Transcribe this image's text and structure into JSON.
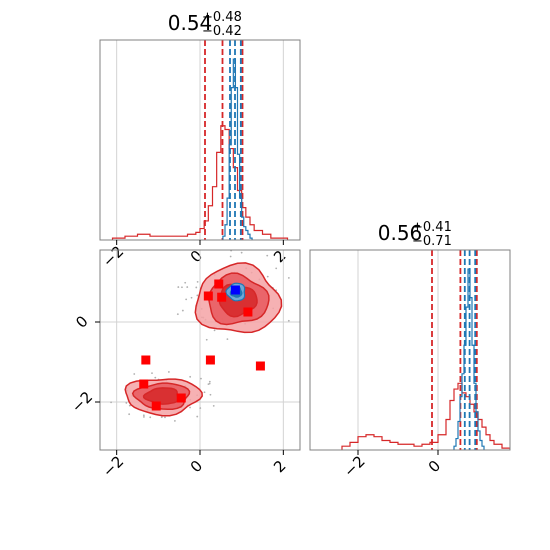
{
  "chart_data": [
    {
      "type": "histogram",
      "panel": "top-left",
      "title": {
        "value": "0.54",
        "upper": "+0.48",
        "lower": "−0.42"
      },
      "xlim": [
        -2.4,
        2.4
      ],
      "grid": true,
      "xticks": [
        -2,
        0,
        2
      ],
      "series": [
        {
          "color": "#d62728",
          "bin_edges": [
            -2.1,
            -1.8,
            -1.5,
            -1.2,
            -0.9,
            -0.6,
            -0.3,
            -0.1,
            0.0,
            0.1,
            0.2,
            0.3,
            0.4,
            0.5,
            0.6,
            0.7,
            0.8,
            0.9,
            1.0,
            1.1,
            1.2,
            1.3,
            1.5,
            1.7,
            1.9,
            2.1
          ],
          "counts": [
            0.01,
            0.02,
            0.03,
            0.02,
            0.02,
            0.02,
            0.03,
            0.04,
            0.06,
            0.1,
            0.18,
            0.28,
            0.46,
            0.6,
            0.58,
            0.48,
            0.38,
            0.26,
            0.17,
            0.12,
            0.08,
            0.05,
            0.03,
            0.01,
            0.01
          ],
          "quantiles": [
            0.12,
            0.54,
            1.02
          ]
        },
        {
          "color": "#1f77b4",
          "bin_edges": [
            0.55,
            0.6,
            0.65,
            0.7,
            0.75,
            0.8,
            0.85,
            0.9,
            0.95,
            1.0,
            1.05,
            1.1,
            1.15,
            1.2,
            1.25
          ],
          "counts": [
            0.02,
            0.08,
            0.22,
            0.5,
            0.8,
            0.95,
            0.8,
            0.45,
            0.22,
            0.12,
            0.07,
            0.05,
            0.03,
            0.01
          ],
          "quantiles": [
            0.72,
            0.84,
            0.98
          ]
        }
      ]
    },
    {
      "type": "contour",
      "panel": "bottom-left",
      "xlim": [
        -2.4,
        2.4
      ],
      "ylim": [
        -3.2,
        1.8
      ],
      "grid": true,
      "xticks": [
        -2,
        0,
        2
      ],
      "yticks": [
        -2,
        0
      ],
      "red_blobs": [
        {
          "x": 0.9,
          "y": 0.55,
          "rx": 1.0,
          "ry": 0.85
        },
        {
          "x": -0.9,
          "y": -1.85,
          "rx": 0.9,
          "ry": 0.45
        }
      ],
      "blue_blob": {
        "x": 0.87,
        "y": 0.75,
        "rx": 0.22,
        "ry": 0.22
      },
      "markers": {
        "color": "#ff0000",
        "points": [
          [
            0.2,
            0.65
          ],
          [
            0.45,
            0.95
          ],
          [
            0.52,
            0.62
          ],
          [
            1.15,
            0.25
          ],
          [
            -1.3,
            -0.95
          ],
          [
            0.25,
            -0.95
          ],
          [
            1.45,
            -1.1
          ],
          [
            -1.35,
            -1.55
          ],
          [
            -1.05,
            -2.1
          ],
          [
            -0.45,
            -1.9
          ]
        ]
      },
      "best_fit": {
        "color": "#0000ff",
        "point": [
          0.85,
          0.8
        ]
      }
    },
    {
      "type": "histogram",
      "panel": "bottom-right",
      "title": {
        "value": "0.56",
        "upper": "+0.41",
        "lower": "−0.71"
      },
      "xlim": [
        -3.2,
        1.8
      ],
      "grid": true,
      "xticks": [
        -2,
        0
      ],
      "series": [
        {
          "color": "#d62728",
          "bin_edges": [
            -2.4,
            -2.2,
            -2.0,
            -1.8,
            -1.6,
            -1.4,
            -1.2,
            -1.0,
            -0.8,
            -0.6,
            -0.4,
            -0.2,
            0.0,
            0.2,
            0.3,
            0.4,
            0.5,
            0.6,
            0.7,
            0.8,
            0.9,
            1.0,
            1.1,
            1.2,
            1.3,
            1.4,
            1.6,
            1.8
          ],
          "counts": [
            0.02,
            0.04,
            0.07,
            0.08,
            0.07,
            0.05,
            0.04,
            0.03,
            0.03,
            0.02,
            0.03,
            0.04,
            0.08,
            0.16,
            0.26,
            0.32,
            0.35,
            0.3,
            0.28,
            0.24,
            0.2,
            0.16,
            0.12,
            0.08,
            0.05,
            0.03,
            0.01
          ],
          "quantiles": [
            -0.15,
            0.56,
            0.97
          ]
        },
        {
          "color": "#1f77b4",
          "bin_edges": [
            0.4,
            0.45,
            0.5,
            0.55,
            0.6,
            0.65,
            0.7,
            0.75,
            0.8,
            0.85,
            0.9,
            0.95,
            1.0,
            1.05,
            1.1,
            1.15
          ],
          "counts": [
            0.02,
            0.06,
            0.15,
            0.28,
            0.4,
            0.55,
            0.75,
            0.95,
            0.8,
            0.55,
            0.35,
            0.2,
            0.1,
            0.05,
            0.02
          ],
          "quantiles": [
            0.67,
            0.79,
            0.93
          ]
        }
      ]
    }
  ]
}
